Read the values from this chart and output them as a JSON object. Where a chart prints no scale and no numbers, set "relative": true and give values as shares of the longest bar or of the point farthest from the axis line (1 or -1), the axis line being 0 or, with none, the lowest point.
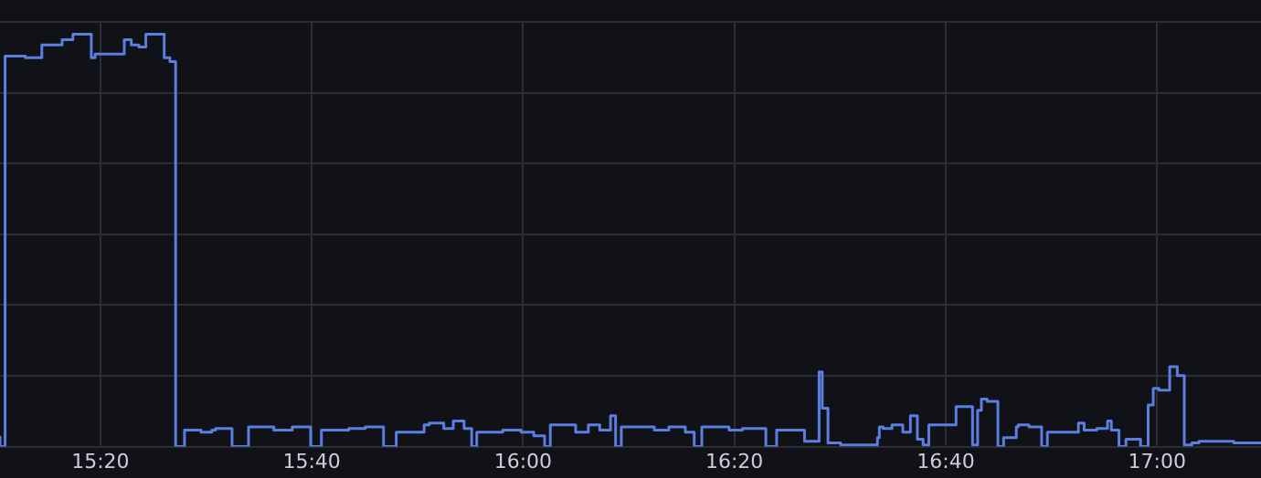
{
  "chart_data": {
    "type": "step",
    "relative": true,
    "grid": true,
    "legend": false,
    "xlim": [
      15.175,
      17.164
    ],
    "xticks": [
      {
        "value": 15.3333,
        "label": "15:20"
      },
      {
        "value": 15.6667,
        "label": "15:40"
      },
      {
        "value": 16,
        "label": "16:00"
      },
      {
        "value": 16.3333,
        "label": "16:20"
      },
      {
        "value": 16.6667,
        "label": "16:40"
      },
      {
        "value": 17,
        "label": "17:00"
      }
    ],
    "series": [
      {
        "color": "#5b7fe0",
        "x": [
          15.175,
          15.183,
          15.215,
          15.241,
          15.273,
          15.29,
          15.319,
          15.325,
          15.371,
          15.382,
          15.394,
          15.405,
          15.434,
          15.443,
          15.452,
          15.466,
          15.492,
          15.509,
          15.515,
          15.541,
          15.567,
          15.607,
          15.636,
          15.665,
          15.682,
          15.725,
          15.751,
          15.78,
          15.8,
          15.844,
          15.852,
          15.875,
          15.89,
          15.907,
          15.919,
          15.927,
          15.968,
          15.997,
          16.017,
          16.034,
          16.043,
          16.083,
          16.103,
          16.121,
          16.138,
          16.146,
          16.155,
          16.207,
          16.23,
          16.256,
          16.27,
          16.282,
          16.325,
          16.346,
          16.383,
          16.4,
          16.444,
          16.467,
          16.472,
          16.481,
          16.501,
          16.559,
          16.562,
          16.568,
          16.582,
          16.599,
          16.611,
          16.622,
          16.631,
          16.64,
          16.683,
          16.709,
          16.717,
          16.723,
          16.732,
          16.749,
          16.758,
          16.778,
          16.781,
          16.798,
          16.818,
          16.827,
          16.876,
          16.885,
          16.905,
          16.922,
          16.928,
          16.94,
          16.951,
          16.974,
          16.986,
          16.994,
          17.003,
          17.02,
          17.032,
          17.043,
          17.055,
          17.066,
          17.121,
          17.136,
          17.164
        ],
        "values": [
          0.026,
          0,
          0.947,
          0.943,
          0.974,
          0.987,
          1,
          0.943,
          0.952,
          0.987,
          0.974,
          0.969,
          1,
          0.943,
          0.934,
          0,
          0.04,
          0.035,
          0.04,
          0.044,
          0,
          0.048,
          0.04,
          0.048,
          0,
          0.04,
          0.044,
          0.048,
          0,
          0.035,
          0.053,
          0.057,
          0.044,
          0.062,
          0.044,
          0,
          0.035,
          0.04,
          0.035,
          0.026,
          0,
          0.053,
          0.035,
          0.053,
          0.04,
          0.075,
          0,
          0.048,
          0.04,
          0.048,
          0.035,
          0,
          0.048,
          0.04,
          0.044,
          0,
          0.04,
          0.013,
          0.181,
          0.093,
          0.009,
          0.004,
          0.022,
          0.048,
          0.044,
          0.053,
          0.035,
          0.075,
          0.018,
          0.004,
          0.053,
          0.097,
          0.004,
          0.088,
          0.115,
          0.11,
          0,
          0.022,
          0.048,
          0.053,
          0.048,
          0,
          0.035,
          0.057,
          0.04,
          0.044,
          0.062,
          0.04,
          0,
          0.018,
          0,
          0.101,
          0.141,
          0.137,
          0.194,
          0.172,
          0.004,
          0.009,
          0.013,
          0.009,
          0.009
        ]
      }
    ]
  }
}
